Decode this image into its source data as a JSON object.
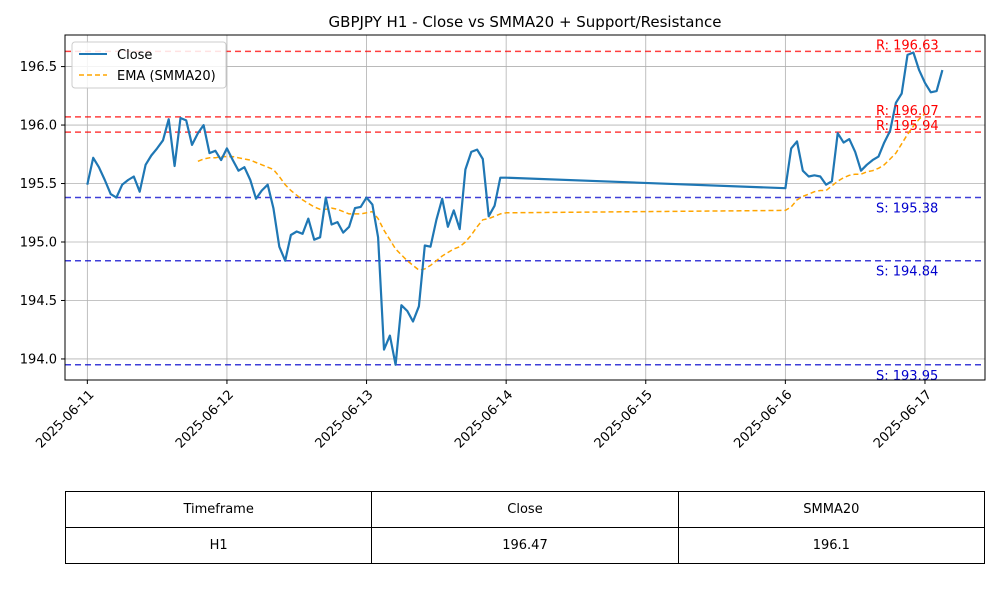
{
  "chart_data": {
    "type": "line",
    "title": "GBPJPY H1 - Close vs SMMA20 + Support/Resistance",
    "xlabel": "",
    "ylabel": "",
    "x_ticks": [
      "2025-06-11",
      "2025-06-12",
      "2025-06-13",
      "2025-06-14",
      "2025-06-15",
      "2025-06-16",
      "2025-06-17"
    ],
    "y_ticks": [
      "194.0",
      "194.5",
      "195.0",
      "195.5",
      "196.0",
      "196.5"
    ],
    "xlim": [
      -0.16,
      6.43
    ],
    "ylim": [
      193.82,
      196.77
    ],
    "grid": true,
    "legend_position": "top-left",
    "series": [
      {
        "name": "Close",
        "color": "#1f77b4",
        "style": "solid",
        "x": [
          0.0,
          0.042,
          0.083,
          0.125,
          0.167,
          0.208,
          0.25,
          0.292,
          0.333,
          0.375,
          0.417,
          0.458,
          0.5,
          0.542,
          0.583,
          0.625,
          0.667,
          0.708,
          0.75,
          0.792,
          0.833,
          0.875,
          0.917,
          0.958,
          1.0,
          1.042,
          1.083,
          1.125,
          1.167,
          1.208,
          1.25,
          1.292,
          1.333,
          1.375,
          1.417,
          1.458,
          1.5,
          1.542,
          1.583,
          1.625,
          1.667,
          1.708,
          1.75,
          1.792,
          1.833,
          1.875,
          1.917,
          1.958,
          2.0,
          2.042,
          2.083,
          2.125,
          2.167,
          2.208,
          2.25,
          2.292,
          2.333,
          2.375,
          2.417,
          2.458,
          2.5,
          2.542,
          2.583,
          2.625,
          2.667,
          2.708,
          2.75,
          2.792,
          2.833,
          2.875,
          2.917,
          2.958,
          3.0,
          5.0,
          5.042,
          5.083,
          5.125,
          5.167,
          5.208,
          5.25,
          5.292,
          5.333,
          5.375,
          5.417,
          5.458,
          5.5,
          5.542,
          5.583,
          5.625,
          5.667,
          5.708,
          5.75,
          5.792,
          5.833,
          5.875,
          5.917,
          5.958,
          6.0,
          6.042,
          6.083,
          6.125
        ],
        "values": [
          195.49,
          195.72,
          195.64,
          195.53,
          195.41,
          195.38,
          195.49,
          195.53,
          195.56,
          195.43,
          195.66,
          195.74,
          195.8,
          195.87,
          196.05,
          195.65,
          196.06,
          196.04,
          195.83,
          195.93,
          196.0,
          195.76,
          195.78,
          195.7,
          195.8,
          195.7,
          195.61,
          195.64,
          195.53,
          195.37,
          195.44,
          195.49,
          195.29,
          194.96,
          194.84,
          195.06,
          195.09,
          195.07,
          195.2,
          195.02,
          195.04,
          195.38,
          195.15,
          195.17,
          195.08,
          195.13,
          195.29,
          195.3,
          195.38,
          195.32,
          195.04,
          194.08,
          194.2,
          193.95,
          194.46,
          194.41,
          194.32,
          194.45,
          194.97,
          194.96,
          195.19,
          195.37,
          195.13,
          195.27,
          195.11,
          195.62,
          195.77,
          195.79,
          195.71,
          195.22,
          195.31,
          195.55,
          195.55,
          195.46,
          195.8,
          195.86,
          195.61,
          195.56,
          195.57,
          195.56,
          195.49,
          195.52,
          195.93,
          195.85,
          195.88,
          195.77,
          195.61,
          195.66,
          195.7,
          195.73,
          195.85,
          195.95,
          196.19,
          196.27,
          196.6,
          196.62,
          196.47,
          196.36,
          196.28,
          196.29,
          196.47
        ]
      },
      {
        "name": "EMA (SMMA20)",
        "color": "#ffa500",
        "style": "dashed",
        "x": [
          0.792,
          0.833,
          0.875,
          0.917,
          0.958,
          1.0,
          1.042,
          1.083,
          1.125,
          1.167,
          1.208,
          1.25,
          1.292,
          1.333,
          1.375,
          1.417,
          1.458,
          1.5,
          1.542,
          1.583,
          1.625,
          1.667,
          1.708,
          1.75,
          1.792,
          1.833,
          1.875,
          1.917,
          1.958,
          2.0,
          2.042,
          2.083,
          2.125,
          2.167,
          2.208,
          2.25,
          2.292,
          2.333,
          2.375,
          2.417,
          2.458,
          2.5,
          2.542,
          2.583,
          2.625,
          2.667,
          2.708,
          2.75,
          2.792,
          2.833,
          2.875,
          2.917,
          2.958,
          3.0,
          5.0,
          5.042,
          5.083,
          5.125,
          5.167,
          5.208,
          5.25,
          5.292,
          5.333,
          5.375,
          5.417,
          5.458,
          5.5,
          5.542,
          5.583,
          5.625,
          5.667,
          5.708,
          5.75,
          5.792,
          5.833,
          5.875,
          5.917,
          5.958,
          6.0
        ],
        "values": [
          195.69,
          195.71,
          195.72,
          195.72,
          195.73,
          195.73,
          195.73,
          195.72,
          195.71,
          195.7,
          195.68,
          195.66,
          195.64,
          195.62,
          195.56,
          195.49,
          195.44,
          195.4,
          195.36,
          195.33,
          195.3,
          195.28,
          195.28,
          195.29,
          195.28,
          195.26,
          195.24,
          195.24,
          195.24,
          195.25,
          195.26,
          195.2,
          195.1,
          195.02,
          194.94,
          194.89,
          194.84,
          194.8,
          194.76,
          194.77,
          194.8,
          194.84,
          194.88,
          194.91,
          194.94,
          194.96,
          195.0,
          195.06,
          195.13,
          195.19,
          195.2,
          195.22,
          195.24,
          195.25,
          195.27,
          195.3,
          195.36,
          195.39,
          195.41,
          195.43,
          195.44,
          195.44,
          195.48,
          195.52,
          195.55,
          195.57,
          195.58,
          195.58,
          195.6,
          195.61,
          195.63,
          195.66,
          195.71,
          195.76,
          195.84,
          195.92,
          195.99,
          196.05,
          196.1
        ]
      }
    ],
    "resistance_color": "#ff0000",
    "support_color": "#0000cd",
    "resistance_levels": [
      {
        "value": 196.63,
        "label": "R: 196.63"
      },
      {
        "value": 196.07,
        "label": "R: 196.07"
      },
      {
        "value": 195.94,
        "label": "R: 195.94"
      }
    ],
    "support_levels": [
      {
        "value": 195.38,
        "label": "S: 195.38"
      },
      {
        "value": 194.84,
        "label": "S: 194.84"
      },
      {
        "value": 193.95,
        "label": "S: 193.95"
      }
    ]
  },
  "table": {
    "headers": [
      "Timeframe",
      "Close",
      "SMMA20"
    ],
    "rows": [
      [
        "H1",
        "196.47",
        "196.1"
      ]
    ]
  }
}
